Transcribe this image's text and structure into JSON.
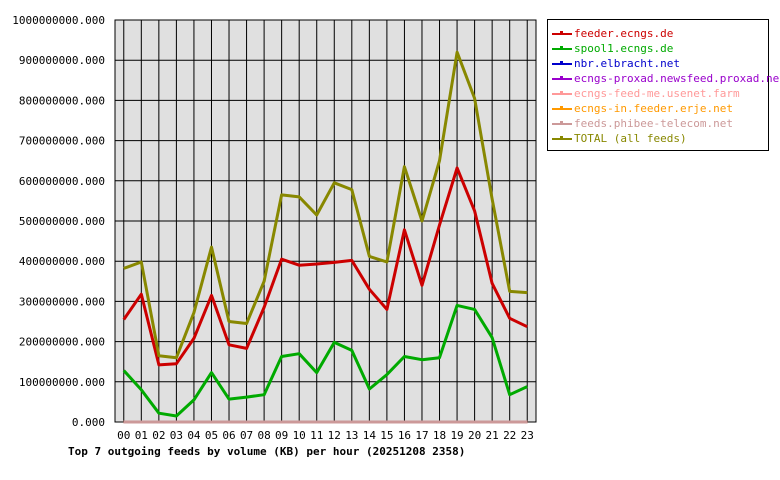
{
  "chart_data": {
    "type": "line",
    "title": "Top 7 outgoing feeds by volume (KB) per hour (20251208 2358)",
    "xlabel": "",
    "ylabel": "",
    "x": [
      "00",
      "01",
      "02",
      "03",
      "04",
      "05",
      "06",
      "07",
      "08",
      "09",
      "10",
      "11",
      "12",
      "13",
      "14",
      "15",
      "16",
      "17",
      "18",
      "19",
      "20",
      "21",
      "22",
      "23"
    ],
    "y_ticks": [
      "0.000",
      "100000000.000",
      "200000000.000",
      "300000000.000",
      "400000000.000",
      "500000000.000",
      "600000000.000",
      "700000000.000",
      "800000000.000",
      "900000000.000",
      "1000000000.000"
    ],
    "ylim": [
      0,
      1000000000
    ],
    "grid": true,
    "legend_position": "top-right",
    "series": [
      {
        "name": "feeder.ecngs.de",
        "color": "#cc0000",
        "values": [
          255000000,
          318000000,
          142000000,
          145000000,
          208000000,
          315000000,
          192000000,
          183000000,
          285000000,
          405000000,
          390000000,
          393000000,
          397000000,
          402000000,
          330000000,
          280000000,
          478000000,
          340000000,
          490000000,
          632000000,
          525000000,
          345000000,
          258000000,
          237000000
        ]
      },
      {
        "name": "spool1.ecngs.de",
        "color": "#00aa00",
        "values": [
          128000000,
          80000000,
          22000000,
          15000000,
          55000000,
          123000000,
          57000000,
          62000000,
          68000000,
          163000000,
          170000000,
          123000000,
          198000000,
          178000000,
          82000000,
          118000000,
          163000000,
          155000000,
          160000000,
          290000000,
          280000000,
          210000000,
          68000000,
          88000000
        ]
      },
      {
        "name": "nbr.elbracht.net",
        "color": "#0000cc",
        "values": [
          0,
          0,
          0,
          0,
          0,
          0,
          0,
          0,
          0,
          0,
          0,
          0,
          0,
          0,
          0,
          0,
          0,
          0,
          0,
          0,
          0,
          0,
          0,
          0
        ]
      },
      {
        "name": "ecngs-proxad.newsfeed.proxad.net",
        "color": "#9900cc",
        "values": [
          0,
          0,
          0,
          0,
          0,
          0,
          0,
          0,
          0,
          0,
          0,
          0,
          0,
          0,
          0,
          0,
          0,
          0,
          0,
          0,
          0,
          0,
          0,
          0
        ]
      },
      {
        "name": "ecngs-feed-me.usenet.farm",
        "color": "#ff9999",
        "values": [
          0,
          0,
          0,
          0,
          0,
          0,
          0,
          0,
          0,
          0,
          0,
          0,
          0,
          0,
          0,
          0,
          0,
          0,
          0,
          0,
          0,
          0,
          0,
          0
        ]
      },
      {
        "name": "ecngs-in.feeder.erje.net",
        "color": "#ff9900",
        "values": [
          0,
          0,
          0,
          0,
          0,
          0,
          0,
          0,
          0,
          0,
          0,
          0,
          0,
          0,
          0,
          0,
          0,
          0,
          0,
          0,
          0,
          0,
          0,
          0
        ]
      },
      {
        "name": "feeds.phibee-telecom.net",
        "color": "#cc9999",
        "values": [
          0,
          0,
          0,
          0,
          0,
          0,
          0,
          0,
          0,
          0,
          0,
          0,
          0,
          0,
          0,
          0,
          0,
          0,
          0,
          0,
          0,
          0,
          0,
          0
        ]
      },
      {
        "name": "TOTAL (all feeds)",
        "color": "#888800",
        "values": [
          382000000,
          398000000,
          165000000,
          160000000,
          272000000,
          435000000,
          250000000,
          245000000,
          350000000,
          565000000,
          560000000,
          515000000,
          595000000,
          578000000,
          412000000,
          398000000,
          635000000,
          500000000,
          650000000,
          920000000,
          805000000,
          555000000,
          325000000,
          322000000
        ]
      }
    ]
  }
}
